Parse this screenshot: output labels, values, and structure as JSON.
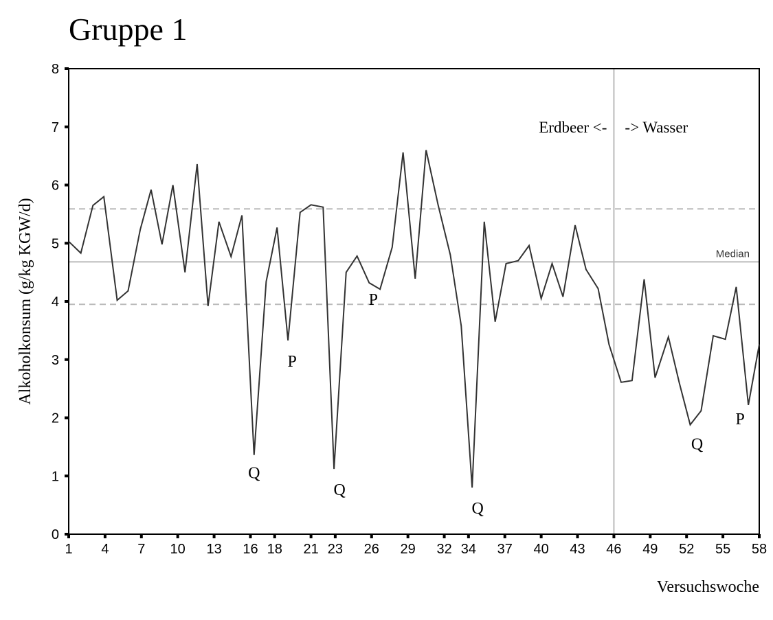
{
  "chart_data": {
    "type": "line",
    "title": "Gruppe 1",
    "y_label": "Alkoholkonsum (g/kg KGW/d)",
    "x_label": "Versuchswoche",
    "xlim": [
      1,
      58
    ],
    "ylim": [
      0,
      8
    ],
    "xticks": [
      1,
      4,
      7,
      10,
      13,
      16,
      18,
      21,
      23,
      26,
      29,
      32,
      34,
      37,
      40,
      43,
      46,
      49,
      52,
      55,
      58
    ],
    "yticks": [
      0,
      1,
      2,
      3,
      4,
      5,
      6,
      7,
      8
    ],
    "series": [
      {
        "name": "Gruppe 1",
        "color": "#333333",
        "x": [
          1.0,
          2.0,
          3.0,
          3.9,
          5.0,
          5.9,
          6.9,
          7.8,
          8.7,
          9.6,
          10.6,
          11.6,
          12.5,
          13.4,
          14.4,
          15.3,
          16.3,
          17.3,
          18.2,
          19.1,
          20.1,
          21.0,
          22.0,
          22.9,
          23.9,
          24.8,
          25.8,
          26.7,
          27.7,
          28.6,
          29.6,
          30.5,
          31.5,
          32.5,
          33.4,
          34.3,
          35.3,
          36.2,
          37.1,
          38.1,
          39.0,
          40.0,
          40.9,
          41.8,
          42.8,
          43.7,
          44.7,
          45.6,
          46.6,
          47.5,
          48.5,
          49.4,
          50.5,
          51.4,
          52.3,
          53.2,
          54.2,
          55.2,
          56.1,
          57.1,
          58.0
        ],
        "values": [
          5.03,
          4.83,
          5.65,
          5.8,
          4.02,
          4.18,
          5.23,
          5.92,
          4.98,
          6.0,
          4.5,
          6.36,
          3.92,
          5.37,
          4.77,
          5.48,
          1.36,
          4.34,
          5.27,
          3.33,
          5.53,
          5.66,
          5.62,
          1.12,
          4.5,
          4.78,
          4.32,
          4.21,
          4.93,
          6.56,
          4.39,
          6.6,
          5.65,
          4.8,
          3.58,
          0.8,
          5.37,
          3.65,
          4.65,
          4.7,
          4.96,
          4.05,
          4.65,
          4.08,
          5.31,
          4.55,
          4.22,
          3.26,
          2.61,
          2.64,
          4.38,
          2.69,
          3.39,
          2.6,
          1.88,
          2.12,
          3.41,
          3.35,
          4.25,
          2.22,
          3.26
        ]
      }
    ],
    "median": {
      "label": "Median",
      "value": 4.68
    },
    "quartiles": [
      5.59,
      3.95
    ],
    "divider": {
      "x": 46,
      "left_label": "Erdbeer <-",
      "right_label": "-> Wasser"
    },
    "annotations": [
      "Q",
      "P",
      "Q",
      "P",
      "Q",
      "Q",
      "P"
    ]
  }
}
